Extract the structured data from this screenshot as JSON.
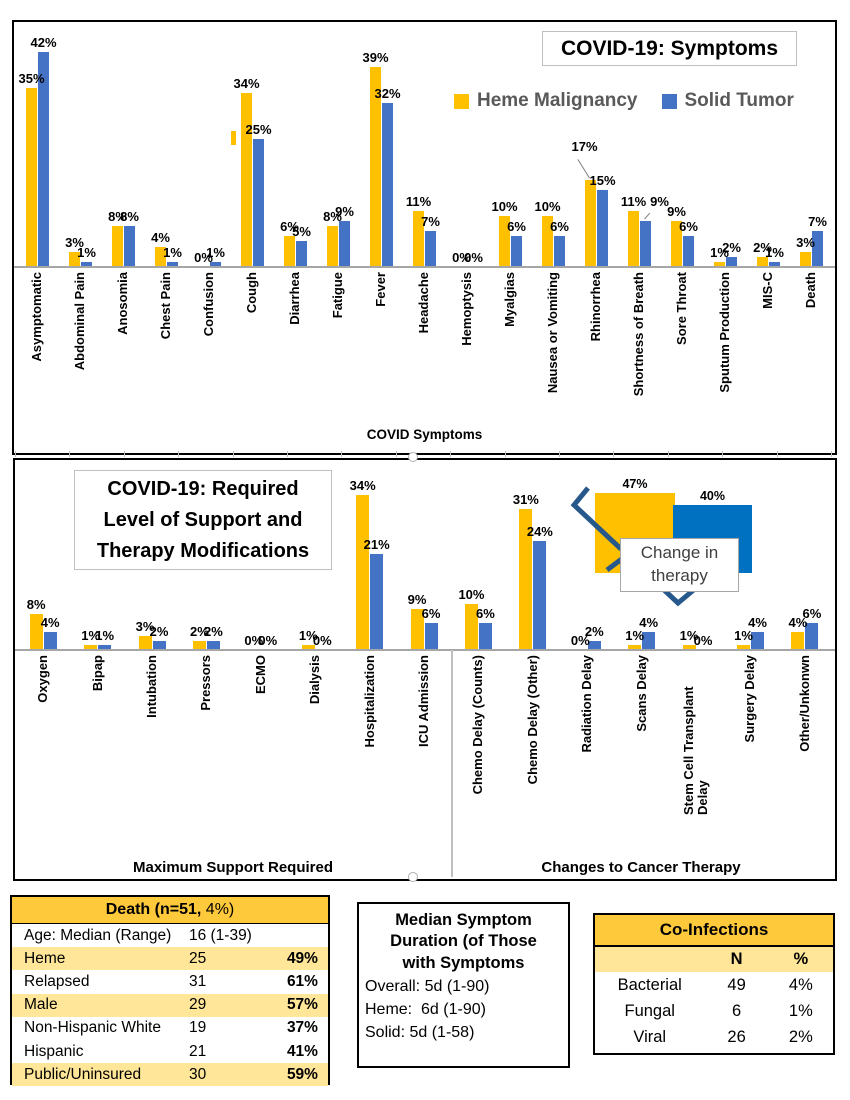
{
  "figure": {
    "background": "#FFFFFF"
  },
  "colors": {
    "heme": "#FFC000",
    "solid": "#4472C4",
    "inset_solid": "#0070C0",
    "brace": "#27588C",
    "legend_text": "#595959",
    "axis_line": "#A6A6A6",
    "table_header_gold": "#FFC93C",
    "table_row_highlight": "#FFE699",
    "box_border": "#BFBFBF"
  },
  "chart_data": [
    {
      "id": "covid-symptoms",
      "type": "bar",
      "title": "COVID-19: Symptoms",
      "xlabel": "COVID Symptoms",
      "ylim": [
        0,
        45
      ],
      "grid": false,
      "legend_position": "top-inside",
      "data_labels": "percent",
      "categories": [
        "Asymptomatic",
        "Abdominal Pain",
        "Anosomia",
        "Chest Pain",
        "Confusion",
        "Cough",
        "Diarrhea",
        "Fatigue",
        "Fever",
        "Headache",
        "Hemoptysis",
        "Myalgias",
        "Nausea or Vomiting",
        "Rhinorrhea",
        "Shortness of Breath",
        "Sore Throat",
        "Sputum Production",
        "MIS-C",
        "Death"
      ],
      "series": [
        {
          "name": "Heme Malignancy",
          "color": "#FFC000",
          "values": [
            35,
            3,
            8,
            4,
            0,
            34,
            6,
            8,
            39,
            11,
            0,
            10,
            10,
            17,
            11,
            9,
            1,
            2,
            3
          ]
        },
        {
          "name": "Solid Tumor",
          "color": "#4472C4",
          "values": [
            42,
            1,
            8,
            1,
            1,
            25,
            5,
            9,
            32,
            7,
            0,
            6,
            6,
            15,
            9,
            6,
            2,
            1,
            7
          ]
        }
      ],
      "label_adjust": {
        "13.0": {
          "dx": -6,
          "raise": 24,
          "rot": -32
        },
        "14.1": {
          "dx": 14,
          "raise": 10,
          "rot": 42
        }
      }
    },
    {
      "id": "support-and-therapy",
      "type": "bar",
      "title": "COVID-19: Required Level of Support and Therapy Modifications",
      "group_labels": [
        "Maximum Support Required",
        "Changes to Cancer Therapy"
      ],
      "group_sizes": [
        8,
        7
      ],
      "ylim": [
        0,
        40
      ],
      "grid": false,
      "data_labels": "percent",
      "categories": [
        "Oxygen",
        "Bipap",
        "Intubation",
        "Pressors",
        "ECMO",
        "Dialysis",
        "Hospitalization",
        "ICU Admission",
        "Chemo Delay (Counts)",
        "Chemo Delay (Other)",
        "Radiation Delay",
        "Scans Delay",
        "Stem Cell Transplant Delay",
        "Surgery Delay",
        "Other/Unkonwn"
      ],
      "series": [
        {
          "name": "Heme Malignancy",
          "color": "#FFC000",
          "values": [
            8,
            1,
            3,
            2,
            0,
            1,
            34,
            9,
            10,
            31,
            0,
            1,
            1,
            1,
            4
          ]
        },
        {
          "name": "Solid Tumor",
          "color": "#4472C4",
          "values": [
            4,
            1,
            2,
            2,
            0,
            0,
            21,
            6,
            6,
            24,
            2,
            4,
            0,
            4,
            6
          ]
        }
      ]
    },
    {
      "id": "change-in-therapy-inset",
      "type": "bar",
      "callout": "Change in therapy",
      "data_labels": "percent",
      "categories": [
        "Heme Malignancy",
        "Solid Tumor"
      ],
      "series": [
        {
          "name": "Heme Malignancy",
          "color": "#FFC000",
          "values": [
            47
          ]
        },
        {
          "name": "Solid Tumor",
          "color": "#0070C0",
          "values": [
            40
          ]
        }
      ]
    },
    {
      "id": "death-summary",
      "type": "table",
      "title_segments": [
        "Death (",
        "n=51,",
        " 4%)"
      ],
      "rows": [
        {
          "label": "Age: Median (Range)",
          "value": "16 (1-39)",
          "highlight": false
        },
        {
          "label": "Heme",
          "n": "25",
          "pct": "49%",
          "highlight": true
        },
        {
          "label": "Relapsed",
          "n": "31",
          "pct": "61%",
          "highlight": false
        },
        {
          "label": "Male",
          "n": "29",
          "pct": "57%",
          "highlight": true
        },
        {
          "label": "Non-Hispanic White",
          "n": "19",
          "pct": "37%",
          "highlight": false
        },
        {
          "label": "Hispanic",
          "n": "21",
          "pct": "41%",
          "highlight": false
        },
        {
          "label": "Public/Uninsured",
          "n": "30",
          "pct": "59%",
          "highlight": true
        }
      ]
    },
    {
      "id": "median-symptom-duration",
      "type": "text",
      "title": "Median Symptom Duration (of Those with Symptoms",
      "lines": [
        "Overall: 5d (1-90)",
        "Heme:  6d (1-90)",
        "Solid: 5d (1-58)"
      ]
    },
    {
      "id": "co-infections",
      "type": "table",
      "title": "Co-Infections",
      "columns": [
        "",
        "N",
        "%"
      ],
      "rows": [
        {
          "label": "Bacterial",
          "n": "49",
          "pct": "4%"
        },
        {
          "label": "Fungal",
          "n": "6",
          "pct": "1%"
        },
        {
          "label": "Viral",
          "n": "26",
          "pct": "2%"
        }
      ]
    }
  ]
}
